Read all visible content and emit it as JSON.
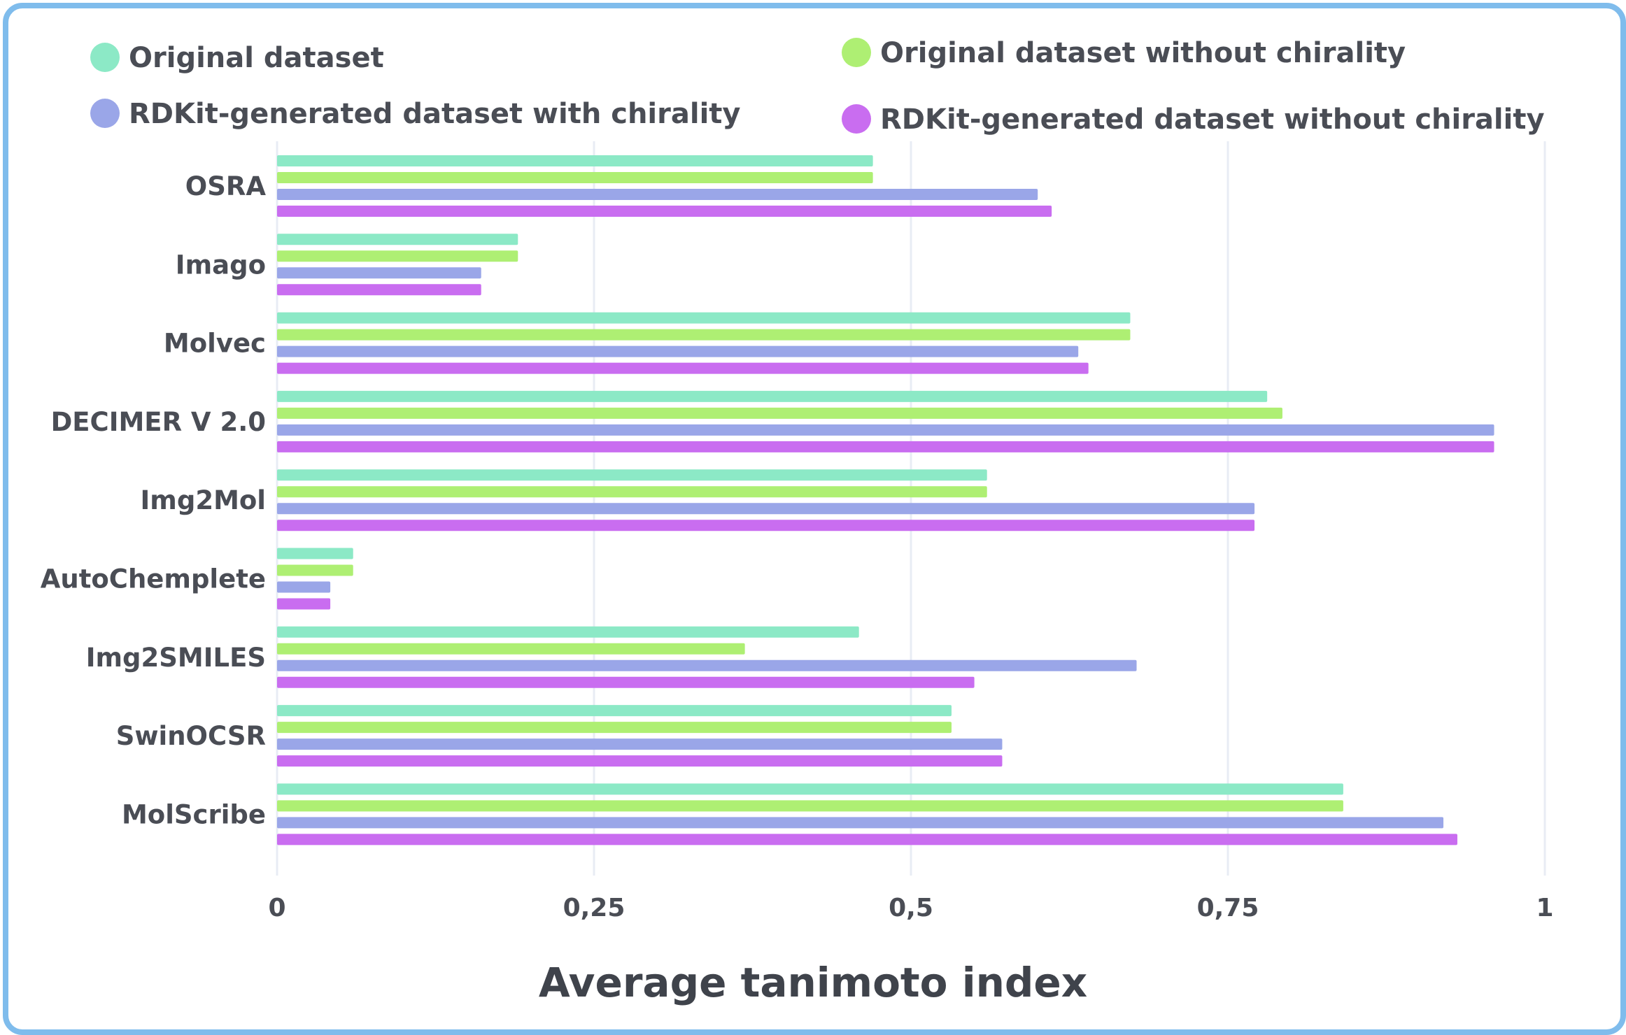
{
  "chart_data": {
    "type": "bar",
    "orientation": "horizontal",
    "title": "",
    "xlabel": "Average tanimoto index",
    "ylabel": "",
    "xlim": [
      0,
      1
    ],
    "x_ticks": [
      0,
      0.25,
      0.5,
      0.75,
      1
    ],
    "x_tick_labels": [
      "0",
      "0,25",
      "0,5",
      "0,75",
      "1"
    ],
    "grid": "vertical",
    "legend_position": "top",
    "categories": [
      "OSRA",
      "Imago",
      "Molvec",
      "DECIMER V 2.0",
      "Img2Mol",
      "AutoChemplete",
      "Img2SMILES",
      "SwinOCSR",
      "MolScribe"
    ],
    "series": [
      {
        "name": "Original dataset",
        "color": "#8ce9c6",
        "values": [
          0.47,
          0.19,
          0.673,
          0.781,
          0.56,
          0.06,
          0.459,
          0.532,
          0.841
        ]
      },
      {
        "name": "Original dataset without chirality",
        "color": "#aeef73",
        "values": [
          0.47,
          0.19,
          0.673,
          0.793,
          0.56,
          0.06,
          0.369,
          0.532,
          0.841
        ]
      },
      {
        "name": "RDKit-generated dataset with chirality",
        "color": "#9aa6e8",
        "values": [
          0.6,
          0.161,
          0.632,
          0.96,
          0.771,
          0.042,
          0.678,
          0.572,
          0.92
        ]
      },
      {
        "name": "RDKit-generated dataset without chirality",
        "color": "#c96df0",
        "values": [
          0.611,
          0.161,
          0.64,
          0.96,
          0.771,
          0.042,
          0.55,
          0.572,
          0.931
        ]
      }
    ],
    "colors": {
      "frame_border": "#7fbcec",
      "grid": "#e8ecf4",
      "text": "#4a4d55"
    }
  }
}
